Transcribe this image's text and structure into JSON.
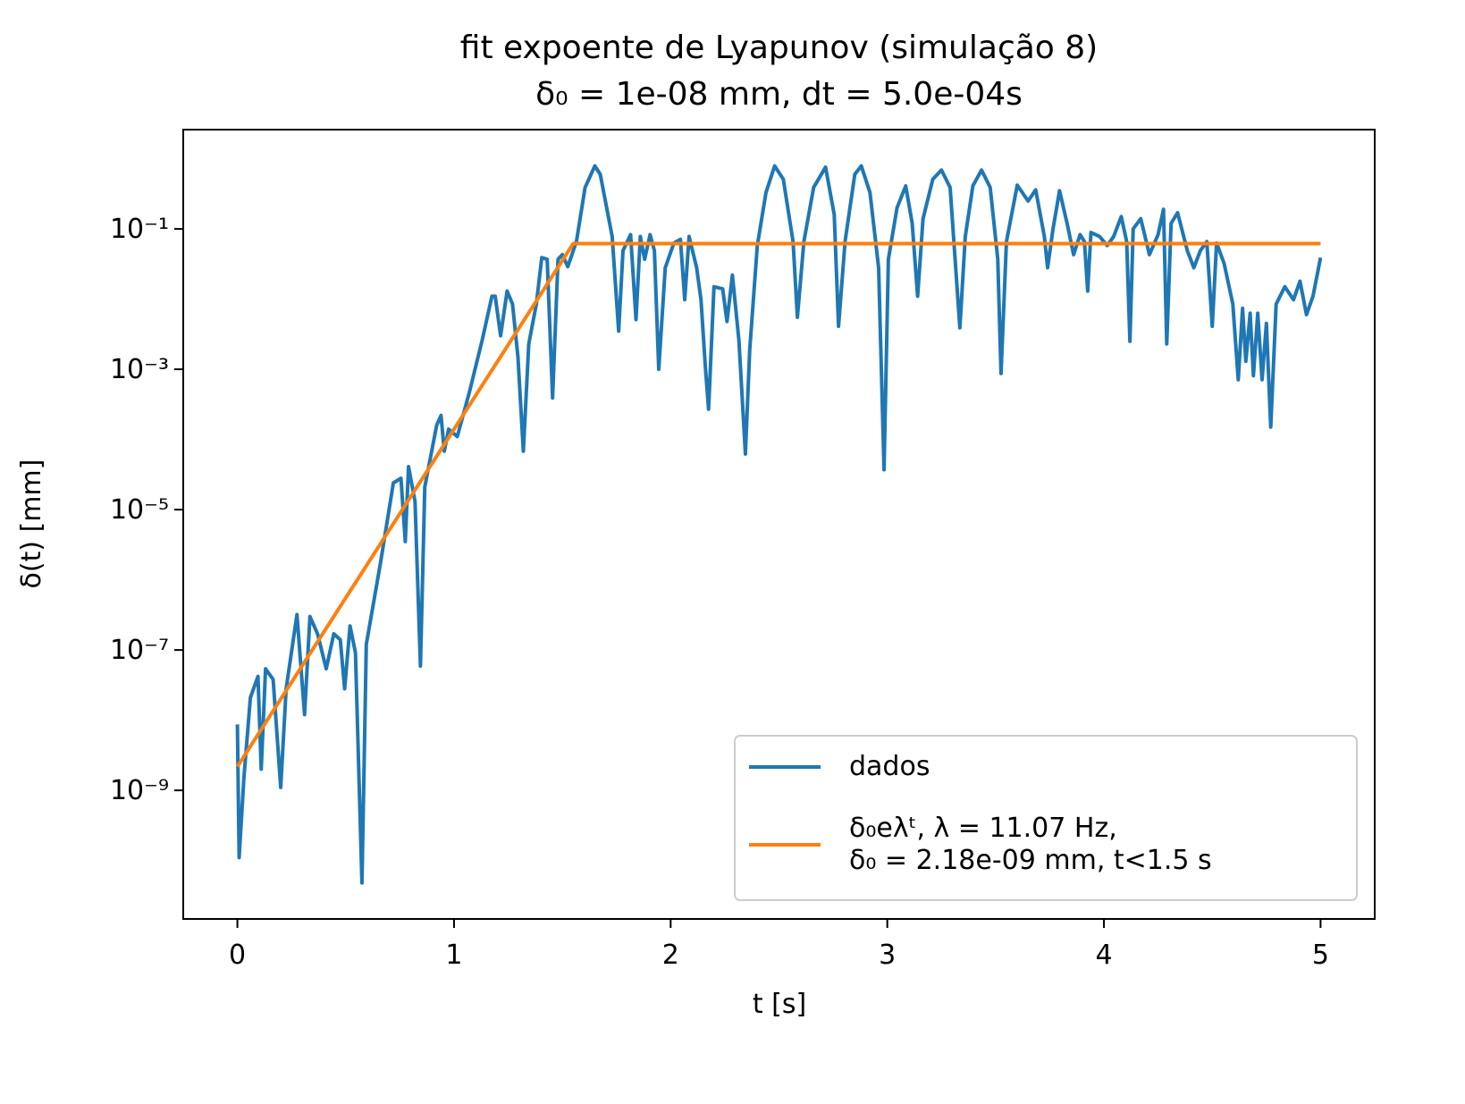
{
  "chart_data": {
    "type": "line",
    "title": "fit expoente de Lyapunov (simulação 8)\nδ₀ = 1e-08 mm, dt = 5.0e-04s",
    "x_label": "t [s]",
    "y_label": "δ(t) [mm]",
    "xlim": [
      -0.25,
      5.25
    ],
    "xticks": [
      0,
      1,
      2,
      3,
      4,
      5
    ],
    "ylim": [
      1.47e-11,
      2.6
    ],
    "y_scale": "log",
    "yticks": [
      {
        "value": 1e-09,
        "label": "10⁻⁹"
      },
      {
        "value": 1e-07,
        "label": "10⁻⁷"
      },
      {
        "value": 1e-05,
        "label": "10⁻⁵"
      },
      {
        "value": 0.001,
        "label": "10⁻³"
      },
      {
        "value": 0.1,
        "label": "10⁻¹"
      }
    ],
    "grid": false,
    "legend": "lower right",
    "series": [
      {
        "name": "dados",
        "color": "#1f77b4",
        "x": [
          0,
          0.008,
          0.03,
          0.06,
          0.095,
          0.11,
          0.13,
          0.165,
          0.2,
          0.225,
          0.275,
          0.31,
          0.335,
          0.37,
          0.41,
          0.445,
          0.475,
          0.495,
          0.52,
          0.545,
          0.575,
          0.595,
          0.66,
          0.72,
          0.755,
          0.775,
          0.79,
          0.82,
          0.845,
          0.865,
          0.92,
          0.94,
          0.955,
          0.975,
          1.015,
          1.07,
          1.13,
          1.175,
          1.19,
          1.215,
          1.245,
          1.27,
          1.295,
          1.32,
          1.345,
          1.38,
          1.405,
          1.43,
          1.455,
          1.48,
          1.5,
          1.525,
          1.565,
          1.605,
          1.65,
          1.675,
          1.73,
          1.76,
          1.78,
          1.815,
          1.84,
          1.86,
          1.88,
          1.905,
          1.925,
          1.945,
          1.975,
          2.015,
          2.045,
          2.065,
          2.085,
          2.12,
          2.14,
          2.16,
          2.175,
          2.2,
          2.24,
          2.26,
          2.285,
          2.315,
          2.345,
          2.365,
          2.4,
          2.44,
          2.48,
          2.52,
          2.565,
          2.585,
          2.615,
          2.66,
          2.715,
          2.755,
          2.775,
          2.805,
          2.85,
          2.88,
          2.92,
          2.96,
          2.985,
          3.005,
          3.045,
          3.085,
          3.115,
          3.14,
          3.165,
          3.21,
          3.25,
          3.29,
          3.335,
          3.36,
          3.395,
          3.435,
          3.475,
          3.51,
          3.525,
          3.55,
          3.6,
          3.65,
          3.685,
          3.725,
          3.74,
          3.765,
          3.795,
          3.83,
          3.86,
          3.89,
          3.91,
          3.925,
          3.94,
          3.98,
          4.015,
          4.045,
          4.08,
          4.105,
          4.12,
          4.135,
          4.17,
          4.21,
          4.25,
          4.275,
          4.29,
          4.31,
          4.34,
          4.385,
          4.415,
          4.445,
          4.475,
          4.5,
          4.52,
          4.555,
          4.595,
          4.62,
          4.64,
          4.655,
          4.675,
          4.69,
          4.71,
          4.73,
          4.75,
          4.77,
          4.795,
          4.835,
          4.875,
          4.905,
          4.935,
          4.965,
          5.0
        ],
        "values": [
          8.7e-09,
          1.1e-10,
          1.5e-09,
          2.1e-08,
          4.2e-08,
          2e-09,
          5.4e-08,
          3.8e-08,
          1.1e-09,
          2.8e-08,
          3.2e-07,
          1.2e-08,
          3e-07,
          1.7e-07,
          5.4e-08,
          1.7e-07,
          1.4e-07,
          2.8e-08,
          2.2e-07,
          9.1e-08,
          4.8e-11,
          1.2e-07,
          1.7e-06,
          2.4e-05,
          2.8e-05,
          3.5e-06,
          4.1e-05,
          1.3e-05,
          5.9e-08,
          2.1e-05,
          0.00016,
          0.00022,
          6.8e-05,
          0.00014,
          0.00011,
          0.00046,
          0.0026,
          0.011,
          0.011,
          0.003,
          0.013,
          0.0085,
          0.0015,
          6.8e-05,
          0.0023,
          0.0085,
          0.039,
          0.037,
          0.00039,
          0.037,
          0.043,
          0.029,
          0.066,
          0.39,
          0.79,
          0.6,
          0.078,
          0.0035,
          0.049,
          0.083,
          0.0051,
          0.078,
          0.037,
          0.083,
          0.049,
          0.001,
          0.028,
          0.063,
          0.071,
          0.0098,
          0.078,
          0.028,
          0.0098,
          0.0011,
          0.00027,
          0.015,
          0.014,
          0.0048,
          0.022,
          0.0026,
          6.2e-05,
          0.0019,
          0.058,
          0.33,
          0.79,
          0.51,
          0.066,
          0.0055,
          0.066,
          0.39,
          0.76,
          0.16,
          0.0041,
          0.066,
          0.6,
          0.79,
          0.33,
          0.028,
          3.7e-05,
          0.037,
          0.2,
          0.41,
          0.12,
          0.011,
          0.14,
          0.51,
          0.69,
          0.39,
          0.0039,
          0.078,
          0.41,
          0.69,
          0.39,
          0.037,
          0.00087,
          0.066,
          0.42,
          0.25,
          0.36,
          0.078,
          0.028,
          0.1,
          0.35,
          0.12,
          0.043,
          0.083,
          0.066,
          0.013,
          0.089,
          0.078,
          0.058,
          0.078,
          0.15,
          0.066,
          0.0025,
          0.1,
          0.14,
          0.043,
          0.083,
          0.19,
          0.0023,
          0.12,
          0.17,
          0.049,
          0.028,
          0.049,
          0.066,
          0.0041,
          0.063,
          0.032,
          0.0085,
          0.00071,
          0.0074,
          0.0013,
          0.0063,
          0.00081,
          0.0063,
          0.00071,
          0.0045,
          0.00015,
          0.0085,
          0.015,
          0.0098,
          0.018,
          0.006,
          0.011,
          0.039
        ]
      },
      {
        "name": "δ₀eλᵗ, λ = 11.07 Hz,\nδ₀ = 2.18e-09 mm,  t<1.5 s",
        "color": "#ff7f0e",
        "x": [
          0,
          1.55,
          5.0
        ],
        "values": [
          2.18e-09,
          0.0617,
          0.0617
        ]
      }
    ]
  }
}
